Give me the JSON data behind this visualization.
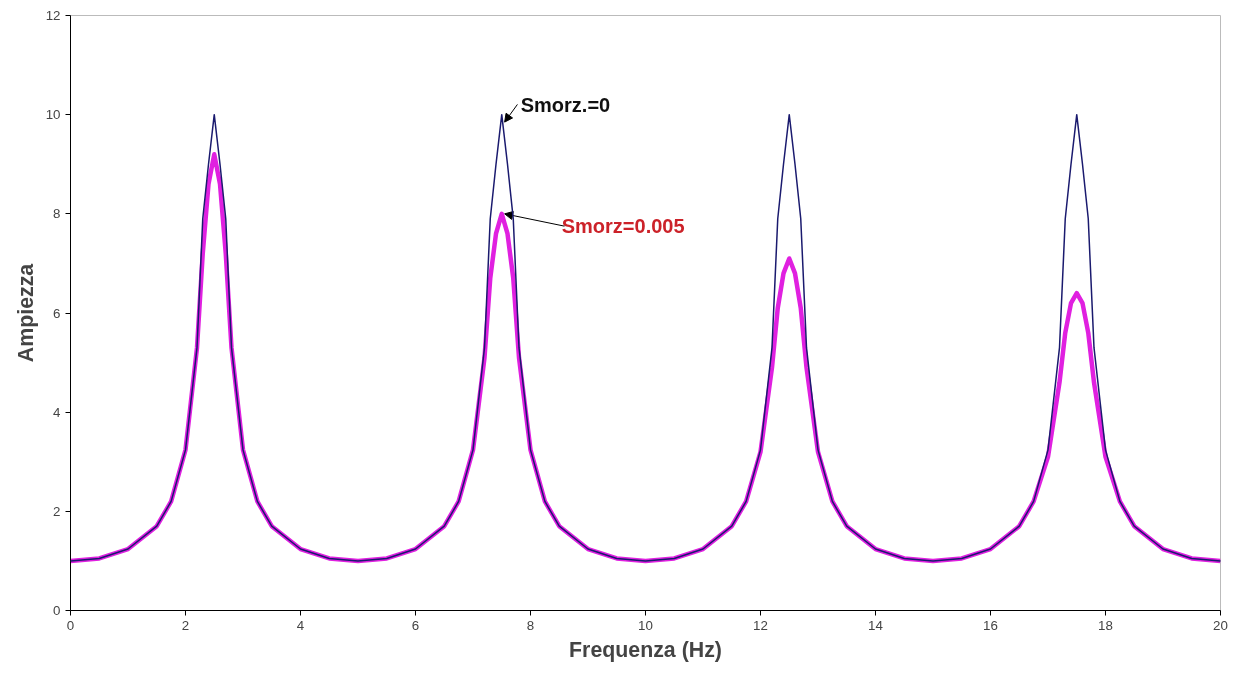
{
  "chart_data": {
    "type": "line",
    "xlabel": "Frequenza (Hz)",
    "ylabel": "Ampiezza",
    "xlim": [
      0,
      20
    ],
    "ylim": [
      0,
      12
    ],
    "xticks": [
      0,
      2,
      4,
      6,
      8,
      10,
      12,
      14,
      16,
      18,
      20
    ],
    "yticks": [
      0,
      2,
      4,
      6,
      8,
      10,
      12
    ],
    "grid": false,
    "legend": false,
    "marker": "none",
    "line_style": "solid",
    "x": [
      0,
      0.5,
      1,
      1.5,
      1.75,
      2,
      2.2,
      2.3,
      2.4,
      2.5,
      2.6,
      2.7,
      2.8,
      3,
      3.25,
      3.5,
      4,
      4.5,
      5,
      5.5,
      6,
      6.5,
      6.75,
      7,
      7.2,
      7.3,
      7.4,
      7.5,
      7.6,
      7.7,
      7.8,
      8,
      8.25,
      8.5,
      9,
      9.5,
      10,
      10.5,
      11,
      11.5,
      11.75,
      12,
      12.2,
      12.3,
      12.4,
      12.5,
      12.6,
      12.7,
      12.8,
      13,
      13.25,
      13.5,
      14,
      14.5,
      15,
      15.5,
      16,
      16.5,
      16.75,
      17,
      17.2,
      17.3,
      17.4,
      17.5,
      17.6,
      17.7,
      17.8,
      18,
      18.25,
      18.5,
      19,
      19.5,
      20
    ],
    "series": [
      {
        "name": "Smorz.=0",
        "color": "#1a1a6e",
        "values": [
          1.0,
          1.05,
          1.24,
          1.7,
          2.2,
          3.24,
          5.3,
          7.9,
          9.0,
          10,
          9.0,
          7.9,
          5.3,
          3.24,
          2.2,
          1.7,
          1.24,
          1.05,
          1.0,
          1.05,
          1.24,
          1.7,
          2.2,
          3.24,
          5.3,
          7.9,
          9.0,
          10,
          9.0,
          7.9,
          5.3,
          3.24,
          2.2,
          1.7,
          1.24,
          1.05,
          1.0,
          1.05,
          1.24,
          1.7,
          2.2,
          3.24,
          5.3,
          7.9,
          9.0,
          10,
          9.0,
          7.9,
          5.3,
          3.24,
          2.2,
          1.7,
          1.24,
          1.05,
          1.0,
          1.05,
          1.24,
          1.7,
          2.2,
          3.24,
          5.3,
          7.9,
          9.0,
          10,
          9.0,
          7.9,
          5.3,
          3.24,
          2.2,
          1.7,
          1.24,
          1.05,
          1.0
        ]
      },
      {
        "name": "Smorz=0.005",
        "color": "#e020e0",
        "values": [
          1.0,
          1.05,
          1.24,
          1.7,
          2.2,
          3.24,
          5.3,
          7.2,
          8.6,
          9.2,
          8.6,
          7.2,
          5.3,
          3.24,
          2.2,
          1.7,
          1.24,
          1.05,
          1.0,
          1.05,
          1.24,
          1.7,
          2.2,
          3.24,
          5.1,
          6.7,
          7.6,
          8.0,
          7.6,
          6.7,
          5.1,
          3.24,
          2.2,
          1.7,
          1.24,
          1.05,
          1.0,
          1.05,
          1.24,
          1.7,
          2.2,
          3.2,
          4.9,
          6.1,
          6.8,
          7.1,
          6.8,
          6.1,
          4.9,
          3.2,
          2.2,
          1.7,
          1.24,
          1.05,
          1.0,
          1.05,
          1.24,
          1.7,
          2.2,
          3.1,
          4.6,
          5.6,
          6.2,
          6.4,
          6.2,
          5.6,
          4.6,
          3.1,
          2.2,
          1.7,
          1.24,
          1.05,
          1.0
        ]
      }
    ]
  }
}
